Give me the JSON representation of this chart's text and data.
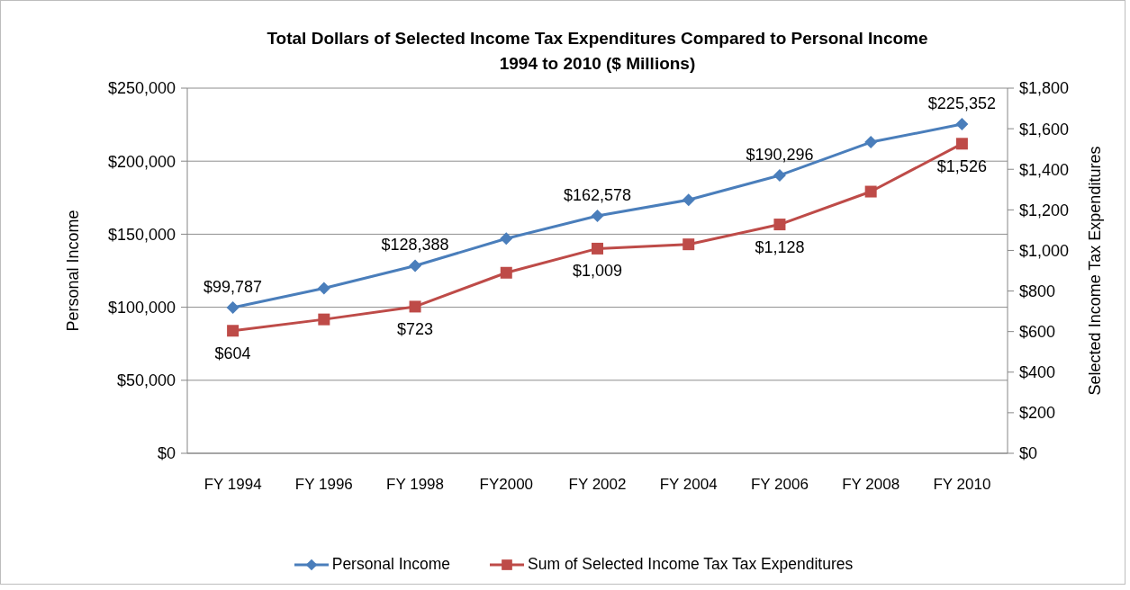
{
  "chart_data": {
    "type": "line",
    "title": "Total Dollars of Selected Income Tax Expenditures Compared to Personal Income",
    "subtitle": "1994 to 2010 ($ Millions)",
    "ylabel": "Personal Income",
    "y2label": "Selected Income Tax Expenditures",
    "categories": [
      "FY 1994",
      "FY 1996",
      "FY 1998",
      "FY2000",
      "FY 2002",
      "FY 2004",
      "FY 2006",
      "FY 2008",
      "FY 2010"
    ],
    "series": [
      {
        "name": "Personal Income",
        "color": "#4a7ebb",
        "marker": "diamond",
        "values": [
          99787,
          113000,
          128388,
          147000,
          162578,
          173500,
          190296,
          213000,
          225352
        ],
        "value_labels": [
          "$99,787",
          null,
          "$128,388",
          null,
          "$162,578",
          null,
          "$190,296",
          null,
          "$225,352"
        ]
      },
      {
        "name": "Sum of Selected Income Tax Tax Expenditures",
        "color": "#be4b48",
        "marker": "square",
        "axis": "y2",
        "values": [
          604,
          660,
          723,
          890,
          1009,
          1030,
          1128,
          1290,
          1526
        ],
        "value_labels": [
          "$604",
          null,
          "$723",
          null,
          "$1,009",
          null,
          "$1,128",
          null,
          "$1,526"
        ]
      }
    ],
    "ylim": [
      0,
      250000
    ],
    "yticks": [
      {
        "value": 0,
        "label": "$0"
      },
      {
        "value": 50000,
        "label": "$50,000"
      },
      {
        "value": 100000,
        "label": "$100,000"
      },
      {
        "value": 150000,
        "label": "$150,000"
      },
      {
        "value": 200000,
        "label": "$200,000"
      },
      {
        "value": 250000,
        "label": "$250,000"
      }
    ],
    "y2lim": [
      0,
      1800
    ],
    "y2ticks": [
      {
        "value": 0,
        "label": "$0"
      },
      {
        "value": 200,
        "label": "$200"
      },
      {
        "value": 400,
        "label": "$400"
      },
      {
        "value": 600,
        "label": "$600"
      },
      {
        "value": 800,
        "label": "$800"
      },
      {
        "value": 1000,
        "label": "$1,000"
      },
      {
        "value": 1200,
        "label": "$1,200"
      },
      {
        "value": 1400,
        "label": "$1,400"
      },
      {
        "value": 1600,
        "label": "$1,600"
      },
      {
        "value": 1800,
        "label": "$1,800"
      }
    ],
    "grid": "y",
    "legend": "bottom",
    "line_style": "solid"
  }
}
